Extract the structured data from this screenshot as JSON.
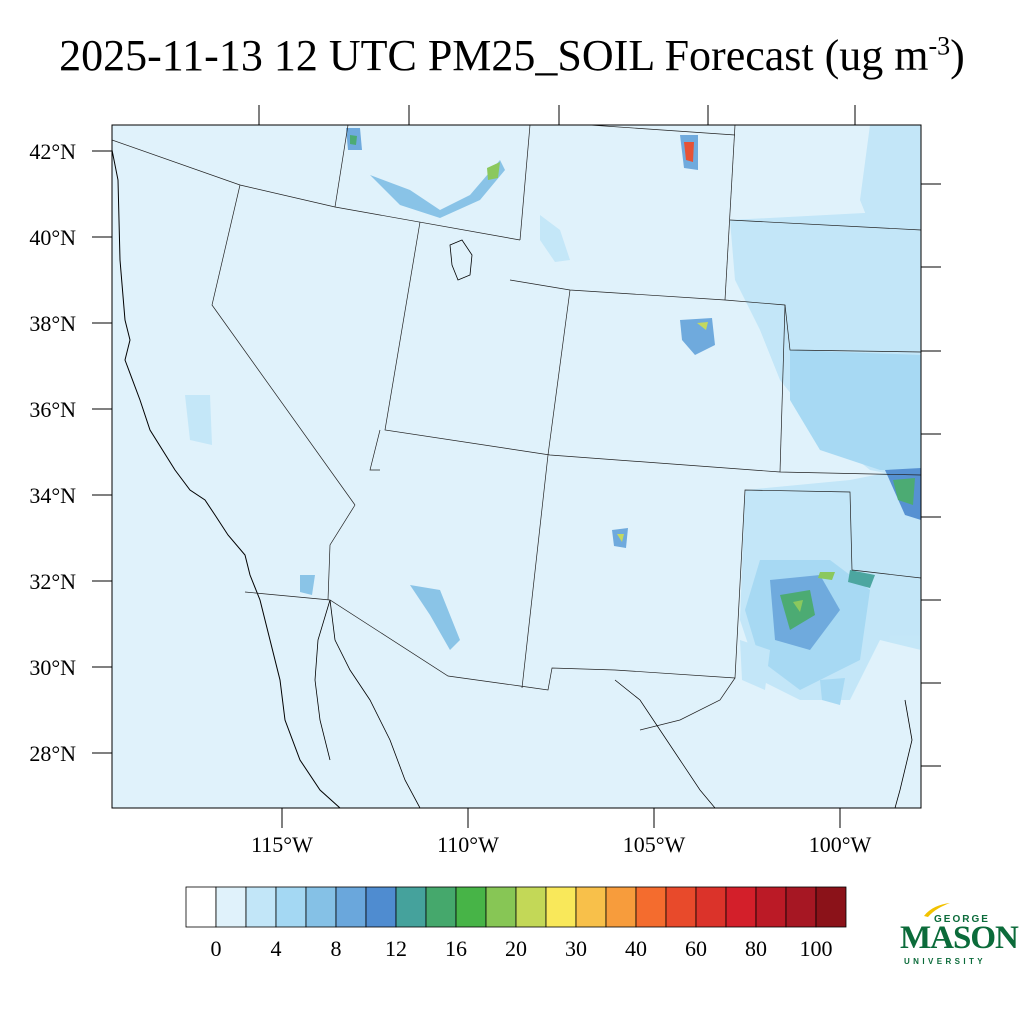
{
  "title": {
    "main": "2025-11-13 12 UTC PM25_SOIL Forecast (ug m",
    "exponent": "-3",
    "close": ")"
  },
  "map": {
    "lat_labels": [
      "42°N",
      "40°N",
      "38°N",
      "36°N",
      "34°N",
      "32°N",
      "30°N",
      "28°N"
    ],
    "lon_labels": [
      "115°W",
      "110°W",
      "105°W",
      "100°W"
    ]
  },
  "colorbar": {
    "labels": [
      "0",
      "4",
      "8",
      "12",
      "16",
      "20",
      "30",
      "40",
      "60",
      "80",
      "100"
    ],
    "colors": [
      "#ffffff",
      "#e0f2fb",
      "#c2e6f8",
      "#a4d8f3",
      "#85c1e6",
      "#6aa7dc",
      "#4f8cd0",
      "#45a29c",
      "#45a86c",
      "#47b447",
      "#87c655",
      "#c3d857",
      "#f9e85a",
      "#f8c04a",
      "#f79c3c",
      "#f46c2e",
      "#e84a2b",
      "#db332a",
      "#d31f2a",
      "#bb1a26",
      "#a61723",
      "#8b1219"
    ]
  },
  "logo": {
    "line1": "GEORGE",
    "line2": "MASON",
    "line3": "UNIVERSITY"
  }
}
